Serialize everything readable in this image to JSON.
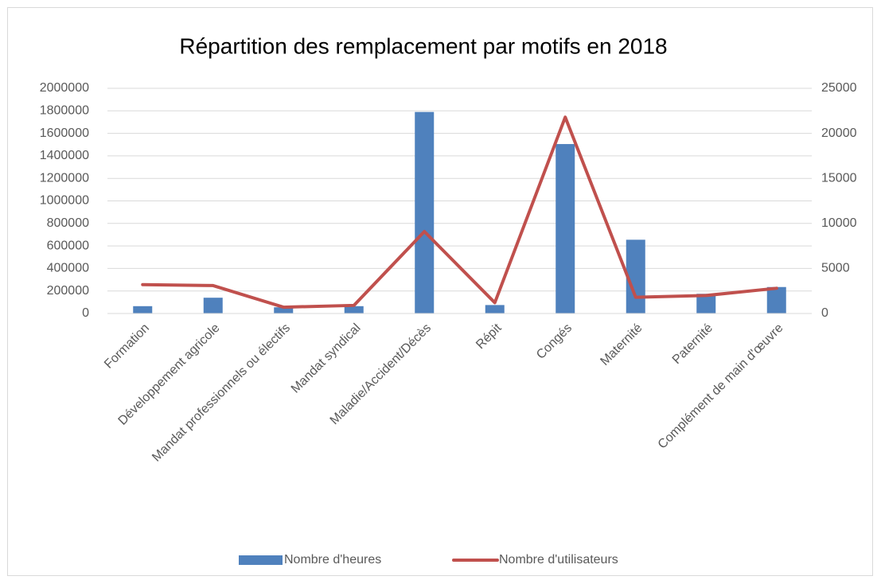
{
  "chart_data": {
    "type": "bar",
    "title": "Répartition des remplacement par motifs en 2018",
    "categories": [
      "Formation",
      "Développement agricole",
      "Mandat professionnels ou électifs",
      "Mandat syndical",
      "Maladie/Accident/Décès",
      "Répit",
      "Congés",
      "Maternité",
      "Paternité",
      "Complément de main d'œuvre"
    ],
    "series": [
      {
        "name": "Nombre d'heures",
        "type": "bar",
        "color": "#4f81bd",
        "values": [
          65000,
          140000,
          55000,
          65000,
          1790000,
          75000,
          1505000,
          655000,
          175000,
          235000
        ]
      },
      {
        "name": "Nombre d'utilisateurs",
        "type": "line",
        "axis": "y2",
        "color": "#c0504d",
        "values": [
          3200,
          3100,
          700,
          900,
          9100,
          1200,
          21800,
          1800,
          2000,
          2800
        ]
      }
    ],
    "ylim": [
      0,
      2000000
    ],
    "yticks": [
      0,
      200000,
      400000,
      600000,
      800000,
      1000000,
      1200000,
      1400000,
      1600000,
      1800000,
      2000000
    ],
    "y2lim": [
      0,
      25000
    ],
    "y2ticks": [
      0,
      5000,
      10000,
      15000,
      20000,
      25000
    ],
    "grid": true,
    "legend": "bottom"
  }
}
